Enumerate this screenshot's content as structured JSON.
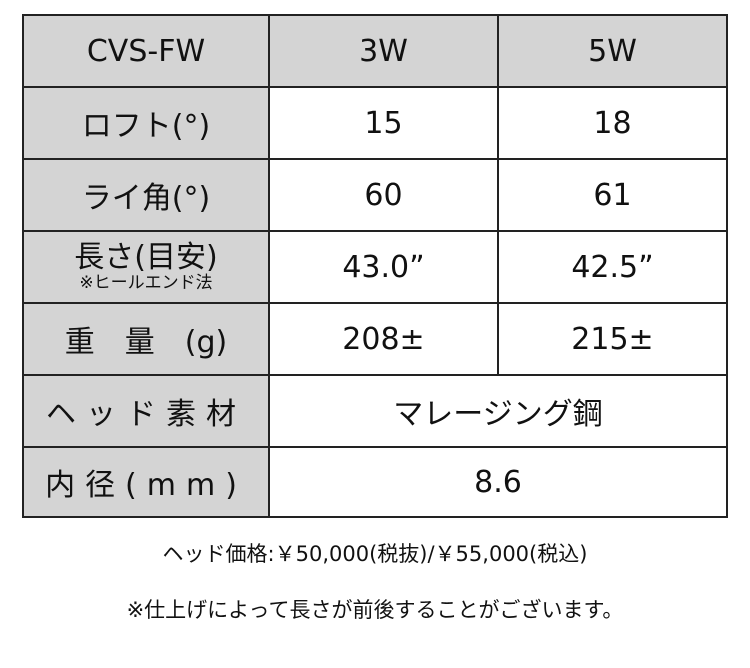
{
  "table": {
    "header": [
      "CVS-FW",
      "3W",
      "5W"
    ],
    "rows": [
      {
        "label": "ロフト(°)",
        "values": [
          "15",
          "18"
        ]
      },
      {
        "label": "ライ角(°)",
        "values": [
          "60",
          "61"
        ]
      },
      {
        "label": "長さ(目安)",
        "sublabel": "※ヒールエンド法",
        "values": [
          "43.0”",
          "42.5”"
        ]
      },
      {
        "label": "重　量　(g)",
        "values": [
          "208±",
          "215±"
        ]
      },
      {
        "label": "ヘッド素材",
        "merged_value": "マレージング鋼"
      },
      {
        "label": "内径(mm)",
        "merged_value": "8.6"
      }
    ]
  },
  "notes": {
    "price": "ヘッド価格:￥50,000(税抜)/￥55,000(税込)",
    "disclaimer": "※仕上げによって長さが前後することがございます。"
  },
  "colors": {
    "header_bg": "#d4d4d4",
    "border": "#222222"
  }
}
